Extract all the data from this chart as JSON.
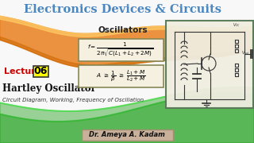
{
  "title": "Electronics Devices & Circuits",
  "subtitle": "Oscillators",
  "lecture_label": "Lecture",
  "lecture_num": "06",
  "topic": "Hartley Oscillator",
  "subtopic": "Circuit Diagram, Working, Frequency of Oscillation",
  "author": "Dr. Ameya A. Kadam",
  "bg_color": "#f8f8f8",
  "title_color": "#4a86c0",
  "subtitle_color": "#222222",
  "lecture_color": "#cc0000",
  "topic_color": "#111111",
  "author_bg": "#c8b09a",
  "stripe_orange": "#e88020",
  "stripe_green": "#3aaa35",
  "formula_bg": "#f5f0e0",
  "formula_border": "#888855",
  "circuit_border": "#557755"
}
